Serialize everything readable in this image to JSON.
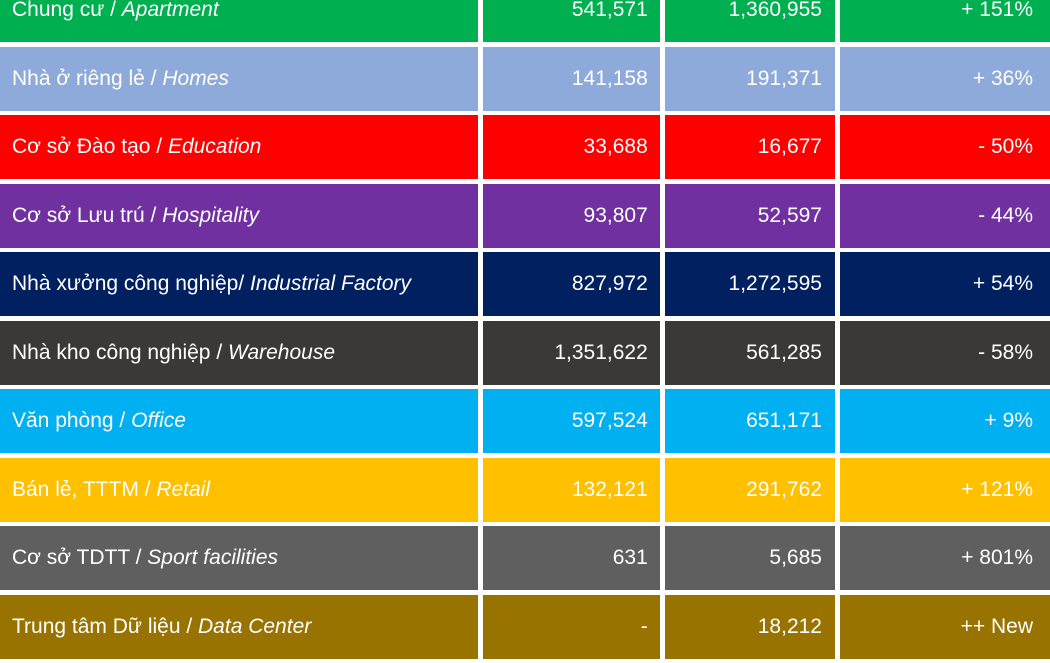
{
  "colors": {
    "apartment": "#00b050",
    "homes": "#8eaadb",
    "education": "#ff0000",
    "hospitality": "#7030a0",
    "industrial_factory": "#002060",
    "warehouse": "#3b3838",
    "office": "#00b0f0",
    "retail": "#ffc000",
    "sport": "#5f5f5f",
    "data_center": "#997300"
  },
  "chart_data": {
    "type": "table",
    "columns": [
      "category",
      "value_1",
      "value_2",
      "change"
    ],
    "rows": [
      {
        "key": "apartment",
        "vn": "Chung cư / ",
        "en": "Apartment",
        "v1": "541,571",
        "v2": "1,360,955",
        "change": "+ 151%"
      },
      {
        "key": "homes",
        "vn": "Nhà ở riêng lẻ / ",
        "en": "Homes",
        "v1": "141,158",
        "v2": "191,371",
        "change": "+ 36%"
      },
      {
        "key": "education",
        "vn": "Cơ sở Đào tạo / ",
        "en": "Education",
        "v1": "33,688",
        "v2": "16,677",
        "change": "- 50%"
      },
      {
        "key": "hospitality",
        "vn": "Cơ sở Lưu trú / ",
        "en": "Hospitality",
        "v1": "93,807",
        "v2": "52,597",
        "change": "- 44%"
      },
      {
        "key": "industrial_factory",
        "vn": "Nhà xưởng công nghiệp/ ",
        "en": "Industrial Factory",
        "v1": "827,972",
        "v2": "1,272,595",
        "change": "+ 54%"
      },
      {
        "key": "warehouse",
        "vn": "Nhà kho công nghiệp / ",
        "en": "Warehouse",
        "v1": "1,351,622",
        "v2": "561,285",
        "change": "- 58%"
      },
      {
        "key": "office",
        "vn": "Văn phòng / ",
        "en": "Office",
        "v1": "597,524",
        "v2": "651,171",
        "change": "+ 9%"
      },
      {
        "key": "retail",
        "vn": "Bán lẻ, TTTM / ",
        "en": "Retail",
        "v1": "132,121",
        "v2": "291,762",
        "change": "+ 121%"
      },
      {
        "key": "sport",
        "vn": "Cơ sở TDTT / ",
        "en": "Sport facilities",
        "v1": "631",
        "v2": "5,685",
        "change": "+ 801%"
      },
      {
        "key": "data_center",
        "vn": "Trung tâm Dữ liệu / ",
        "en": "Data Center",
        "v1": "-",
        "v2": "18,212",
        "change": "++ New"
      }
    ]
  }
}
